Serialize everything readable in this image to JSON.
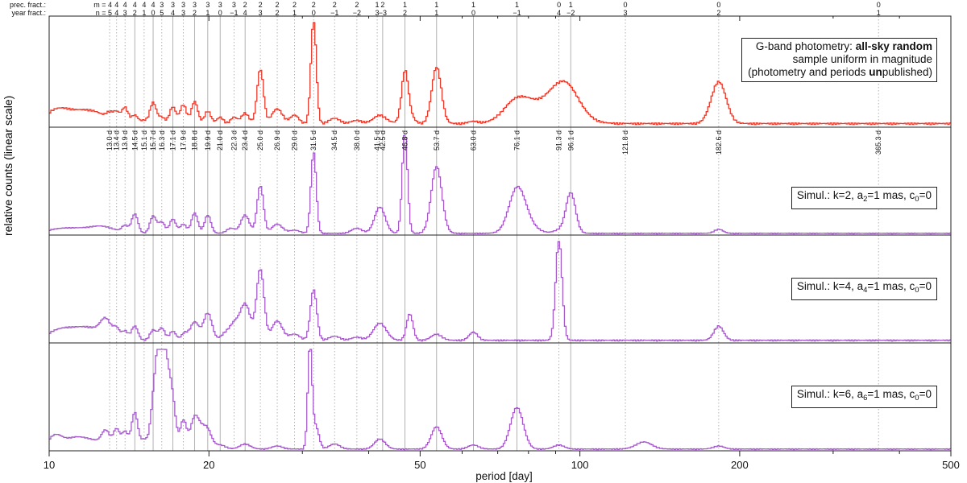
{
  "chart_data": {
    "type": "line",
    "xlabel": "period [day]",
    "ylabel": "relative counts (linear scale)",
    "x_scale": "log",
    "xlim": [
      10,
      500
    ],
    "x_ticks": [
      {
        "value": 10,
        "label": "10"
      },
      {
        "value": 20,
        "label": "20"
      },
      {
        "value": 50,
        "label": "50"
      },
      {
        "value": 100,
        "label": "100"
      },
      {
        "value": 200,
        "label": "200"
      },
      {
        "value": 500,
        "label": "500"
      }
    ],
    "top_row_labels": {
      "prec": "prec. fract.:",
      "year": "year fract.:"
    },
    "prec_fract": [
      {
        "period": 13.0,
        "label": "m = 4"
      },
      {
        "period": 13.4,
        "label": "4"
      },
      {
        "period": 13.9,
        "label": "4"
      },
      {
        "period": 14.5,
        "label": "4"
      },
      {
        "period": 15.1,
        "label": "4"
      },
      {
        "period": 15.7,
        "label": "4"
      },
      {
        "period": 16.3,
        "label": "3"
      },
      {
        "period": 17.1,
        "label": "3"
      },
      {
        "period": 17.9,
        "label": "3"
      },
      {
        "period": 18.8,
        "label": "3"
      },
      {
        "period": 19.9,
        "label": "3"
      },
      {
        "period": 21.0,
        "label": "3"
      },
      {
        "period": 22.3,
        "label": "3"
      },
      {
        "period": 23.4,
        "label": "2"
      },
      {
        "period": 25.0,
        "label": "2"
      },
      {
        "period": 26.9,
        "label": "2"
      },
      {
        "period": 29.0,
        "label": "2"
      },
      {
        "period": 31.5,
        "label": "2"
      },
      {
        "period": 34.5,
        "label": "2"
      },
      {
        "period": 38.0,
        "label": "2"
      },
      {
        "period": 41.5,
        "label": "1"
      },
      {
        "period": 42.5,
        "label": "2"
      },
      {
        "period": 46.8,
        "label": "1"
      },
      {
        "period": 53.7,
        "label": "1"
      },
      {
        "period": 63.0,
        "label": "1"
      },
      {
        "period": 76.1,
        "label": "1"
      },
      {
        "period": 91.3,
        "label": "0"
      },
      {
        "period": 96.1,
        "label": "1"
      },
      {
        "period": 121.8,
        "label": "0"
      },
      {
        "period": 182.6,
        "label": "0"
      },
      {
        "period": 365.3,
        "label": "0"
      }
    ],
    "year_fract": [
      {
        "period": 13.0,
        "label": "n = 5"
      },
      {
        "period": 13.4,
        "label": "4"
      },
      {
        "period": 13.9,
        "label": "3"
      },
      {
        "period": 14.5,
        "label": "2"
      },
      {
        "period": 15.1,
        "label": "1"
      },
      {
        "period": 15.7,
        "label": "0"
      },
      {
        "period": 16.3,
        "label": "5"
      },
      {
        "period": 17.1,
        "label": "4"
      },
      {
        "period": 17.9,
        "label": "3"
      },
      {
        "period": 18.8,
        "label": "2"
      },
      {
        "period": 19.9,
        "label": "1"
      },
      {
        "period": 21.0,
        "label": "0"
      },
      {
        "period": 22.3,
        "label": "−1"
      },
      {
        "period": 23.4,
        "label": "4"
      },
      {
        "period": 25.0,
        "label": "3"
      },
      {
        "period": 26.9,
        "label": "2"
      },
      {
        "period": 29.0,
        "label": "1"
      },
      {
        "period": 31.5,
        "label": "0"
      },
      {
        "period": 34.5,
        "label": "−1"
      },
      {
        "period": 38.0,
        "label": "−2"
      },
      {
        "period": 41.5,
        "label": "3"
      },
      {
        "period": 42.5,
        "label": "−3"
      },
      {
        "period": 46.8,
        "label": "2"
      },
      {
        "period": 53.7,
        "label": "1"
      },
      {
        "period": 63.0,
        "label": "0"
      },
      {
        "period": 76.1,
        "label": "−1"
      },
      {
        "period": 91.3,
        "label": "4"
      },
      {
        "period": 96.1,
        "label": "−2"
      },
      {
        "period": 121.8,
        "label": "3"
      },
      {
        "period": 182.6,
        "label": "2"
      },
      {
        "period": 365.3,
        "label": "1"
      }
    ],
    "period_markers": [
      {
        "period": 13.0,
        "label": "13.0 d",
        "style": "dotted"
      },
      {
        "period": 13.4,
        "label": "13.4 d",
        "style": "dotted"
      },
      {
        "period": 13.9,
        "label": "13.9 d",
        "style": "dotted"
      },
      {
        "period": 14.5,
        "label": "14.5 d",
        "style": "solid"
      },
      {
        "period": 15.1,
        "label": "15.1 d",
        "style": "dotted"
      },
      {
        "period": 15.7,
        "label": "15.7 d",
        "style": "solid"
      },
      {
        "period": 16.3,
        "label": "16.3 d",
        "style": "dotted"
      },
      {
        "period": 17.1,
        "label": "17.1 d",
        "style": "solid"
      },
      {
        "period": 17.9,
        "label": "17.9 d",
        "style": "dotted"
      },
      {
        "period": 18.8,
        "label": "18.8 d",
        "style": "solid"
      },
      {
        "period": 19.9,
        "label": "19.9 d",
        "style": "solid"
      },
      {
        "period": 21.0,
        "label": "21.0 d",
        "style": "solid"
      },
      {
        "period": 22.3,
        "label": "22.3 d",
        "style": "dotted"
      },
      {
        "period": 23.4,
        "label": "23.4 d",
        "style": "solid"
      },
      {
        "period": 25.0,
        "label": "25.0 d",
        "style": "dotted"
      },
      {
        "period": 26.9,
        "label": "26.9 d",
        "style": "dotted"
      },
      {
        "period": 29.0,
        "label": "29.0 d",
        "style": "dotted"
      },
      {
        "period": 31.5,
        "label": "31.5 d",
        "style": "dotted"
      },
      {
        "period": 34.5,
        "label": "34.5 d",
        "style": "dotted"
      },
      {
        "period": 38.0,
        "label": "38.0 d",
        "style": "dotted"
      },
      {
        "period": 41.5,
        "label": "41.5 d",
        "style": "dotted"
      },
      {
        "period": 42.5,
        "label": "42.5 d",
        "style": "solid"
      },
      {
        "period": 46.8,
        "label": "46.8 d",
        "style": "solid"
      },
      {
        "period": 53.7,
        "label": "53.7 d",
        "style": "solid"
      },
      {
        "period": 63.0,
        "label": "63.0 d",
        "style": "solid"
      },
      {
        "period": 76.1,
        "label": "76.1 d",
        "style": "solid"
      },
      {
        "period": 91.3,
        "label": "91.3 d",
        "style": "dotted"
      },
      {
        "period": 96.1,
        "label": "96.1 d",
        "style": "solid"
      },
      {
        "period": 121.8,
        "label": "121.8 d",
        "style": "dotted"
      },
      {
        "period": 182.6,
        "label": "182.6 d",
        "style": "dotted"
      },
      {
        "period": 365.3,
        "label": "365.3 d",
        "style": "dotted"
      }
    ],
    "panels": [
      {
        "id": "gaia",
        "color": "#e8392a",
        "legend": {
          "line1_prefix": "G-band photometry: ",
          "line1_bold": "all-sky random",
          "line2": "sample uniform in magnitude",
          "line3_prefix": "(photometry and periods ",
          "line3_bold": "un",
          "line3_suffix": "published)"
        },
        "baseline": 0.04,
        "peaks": [
          [
            10.15,
            0.07,
            0.02
          ],
          [
            10.5,
            0.06,
            0.02
          ],
          [
            11.0,
            0.05,
            0.02
          ],
          [
            11.6,
            0.06,
            0.02
          ],
          [
            12.1,
            0.05,
            0.02
          ],
          [
            12.6,
            0.04,
            0.02
          ],
          [
            13.0,
            0.06,
            0.006
          ],
          [
            13.4,
            0.09,
            0.006
          ],
          [
            13.9,
            0.15,
            0.006
          ],
          [
            14.5,
            0.08,
            0.006
          ],
          [
            15.1,
            0.03,
            0.006
          ],
          [
            15.7,
            0.2,
            0.006
          ],
          [
            16.3,
            0.06,
            0.006
          ],
          [
            17.1,
            0.16,
            0.006
          ],
          [
            17.9,
            0.18,
            0.006
          ],
          [
            18.8,
            0.21,
            0.006
          ],
          [
            19.9,
            0.12,
            0.006
          ],
          [
            21.0,
            0.06,
            0.006
          ],
          [
            22.3,
            0.06,
            0.006
          ],
          [
            23.4,
            0.1,
            0.007
          ],
          [
            25.0,
            0.52,
            0.006
          ],
          [
            26.9,
            0.14,
            0.01
          ],
          [
            29.0,
            0.08,
            0.008
          ],
          [
            31.5,
            1.0,
            0.005
          ],
          [
            34.5,
            0.05,
            0.01
          ],
          [
            38.0,
            0.03,
            0.01
          ],
          [
            42.0,
            0.08,
            0.012
          ],
          [
            46.8,
            0.4,
            0.006
          ],
          [
            47.2,
            0.12,
            0.01
          ],
          [
            53.7,
            0.54,
            0.009
          ],
          [
            63.0,
            0.02,
            0.01
          ],
          [
            76.1,
            0.2,
            0.025
          ],
          [
            88.0,
            0.18,
            0.04
          ],
          [
            94.0,
            0.26,
            0.025
          ],
          [
            182.6,
            0.4,
            0.014
          ]
        ]
      },
      {
        "id": "k2",
        "color": "#a45bc7",
        "legend": {
          "prefix": "Simul.:  k=2, a",
          "sub": "2",
          "suffix": "=1 mas, c",
          "sub2": "0",
          "suffix2": "=0"
        },
        "baseline": 0.02,
        "peaks": [
          [
            10.2,
            0.03,
            0.02
          ],
          [
            11.0,
            0.04,
            0.02
          ],
          [
            12.0,
            0.04,
            0.02
          ],
          [
            12.8,
            0.05,
            0.02
          ],
          [
            13.9,
            0.07,
            0.006
          ],
          [
            14.5,
            0.19,
            0.006
          ],
          [
            15.7,
            0.17,
            0.006
          ],
          [
            16.3,
            0.11,
            0.006
          ],
          [
            17.1,
            0.14,
            0.006
          ],
          [
            17.9,
            0.09,
            0.006
          ],
          [
            18.8,
            0.2,
            0.006
          ],
          [
            19.9,
            0.18,
            0.006
          ],
          [
            22.0,
            0.05,
            0.008
          ],
          [
            23.4,
            0.18,
            0.008
          ],
          [
            25.0,
            0.47,
            0.006
          ],
          [
            26.9,
            0.09,
            0.01
          ],
          [
            29.0,
            0.03,
            0.01
          ],
          [
            31.5,
            0.8,
            0.005
          ],
          [
            38.0,
            0.05,
            0.01
          ],
          [
            42.0,
            0.26,
            0.01
          ],
          [
            46.8,
            1.0,
            0.005
          ],
          [
            53.7,
            0.66,
            0.01
          ],
          [
            76.1,
            0.38,
            0.015
          ],
          [
            78.5,
            0.1,
            0.02
          ],
          [
            91.3,
            0.03,
            0.01
          ],
          [
            96.1,
            0.4,
            0.009
          ],
          [
            182.6,
            0.04,
            0.008
          ]
        ]
      },
      {
        "id": "k4",
        "color": "#a45bc7",
        "legend": {
          "prefix": "Simul.:  k=4, a",
          "sub": "4",
          "suffix": "=1 mas, c",
          "sub2": "0",
          "suffix2": "=0"
        },
        "baseline": 0.03,
        "peaks": [
          [
            10.2,
            0.06,
            0.02
          ],
          [
            10.8,
            0.07,
            0.02
          ],
          [
            11.5,
            0.07,
            0.02
          ],
          [
            12.2,
            0.08,
            0.02
          ],
          [
            12.8,
            0.17,
            0.01
          ],
          [
            13.4,
            0.1,
            0.006
          ],
          [
            13.9,
            0.09,
            0.006
          ],
          [
            14.5,
            0.14,
            0.006
          ],
          [
            15.7,
            0.1,
            0.006
          ],
          [
            16.3,
            0.12,
            0.006
          ],
          [
            17.1,
            0.09,
            0.006
          ],
          [
            18.0,
            0.07,
            0.006
          ],
          [
            18.8,
            0.18,
            0.008
          ],
          [
            19.9,
            0.27,
            0.008
          ],
          [
            21.5,
            0.07,
            0.008
          ],
          [
            22.3,
            0.14,
            0.008
          ],
          [
            23.4,
            0.36,
            0.01
          ],
          [
            25.0,
            0.7,
            0.007
          ],
          [
            26.9,
            0.19,
            0.01
          ],
          [
            29.0,
            0.06,
            0.01
          ],
          [
            31.5,
            0.5,
            0.006
          ],
          [
            34.5,
            0.04,
            0.01
          ],
          [
            38.0,
            0.03,
            0.01
          ],
          [
            42.0,
            0.17,
            0.012
          ],
          [
            47.8,
            0.26,
            0.006
          ],
          [
            53.7,
            0.06,
            0.01
          ],
          [
            63.0,
            0.08,
            0.008
          ],
          [
            91.3,
            1.0,
            0.006
          ],
          [
            182.6,
            0.14,
            0.009
          ]
        ]
      },
      {
        "id": "k6",
        "color": "#a45bc7",
        "legend": {
          "prefix": "Simul.:  k=6, a",
          "sub": "6",
          "suffix": "=1 mas, c",
          "sub2": "0",
          "suffix2": "=0"
        },
        "baseline": 0.02,
        "peaks": [
          [
            10.1,
            0.08,
            0.01
          ],
          [
            10.4,
            0.07,
            0.01
          ],
          [
            10.8,
            0.06,
            0.015
          ],
          [
            11.3,
            0.07,
            0.015
          ],
          [
            11.8,
            0.05,
            0.015
          ],
          [
            12.3,
            0.05,
            0.015
          ],
          [
            12.8,
            0.16,
            0.008
          ],
          [
            13.4,
            0.19,
            0.006
          ],
          [
            13.9,
            0.17,
            0.006
          ],
          [
            14.5,
            0.36,
            0.006
          ],
          [
            15.1,
            0.09,
            0.006
          ],
          [
            15.7,
            0.34,
            0.006
          ],
          [
            16.0,
            0.55,
            0.006
          ],
          [
            16.3,
            0.9,
            0.006
          ],
          [
            16.7,
            0.6,
            0.006
          ],
          [
            17.1,
            0.42,
            0.006
          ],
          [
            17.9,
            0.28,
            0.006
          ],
          [
            18.8,
            0.3,
            0.008
          ],
          [
            19.4,
            0.12,
            0.008
          ],
          [
            19.9,
            0.16,
            0.008
          ],
          [
            21.0,
            0.04,
            0.01
          ],
          [
            23.4,
            0.05,
            0.01
          ],
          [
            26.9,
            0.03,
            0.01
          ],
          [
            31.0,
            1.0,
            0.004
          ],
          [
            31.8,
            0.22,
            0.006
          ],
          [
            34.5,
            0.05,
            0.01
          ],
          [
            42.0,
            0.1,
            0.01
          ],
          [
            53.7,
            0.22,
            0.01
          ],
          [
            63.0,
            0.04,
            0.01
          ],
          [
            76.1,
            0.41,
            0.012
          ],
          [
            91.3,
            0.04,
            0.01
          ],
          [
            132.0,
            0.07,
            0.015
          ],
          [
            182.6,
            0.03,
            0.01
          ]
        ]
      }
    ]
  }
}
